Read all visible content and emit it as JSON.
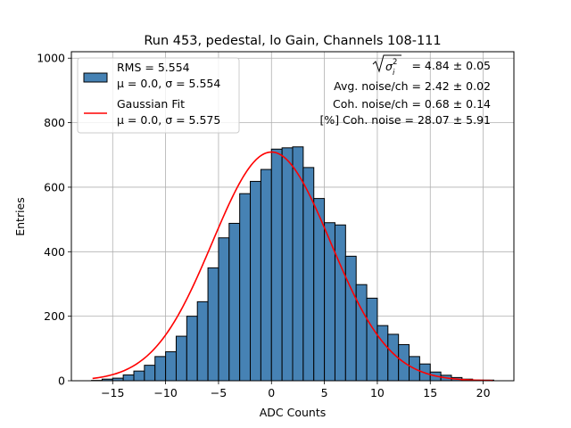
{
  "chart_data": {
    "type": "bar",
    "title": "Run 453, pedestal, lo Gain, Channels 108-111",
    "xlabel": "ADC Counts",
    "ylabel": "Entries",
    "xlim": [
      -18.9,
      22.9
    ],
    "ylim": [
      0,
      1020
    ],
    "x_ticks": [
      -15,
      -10,
      -5,
      0,
      5,
      10,
      15,
      20
    ],
    "x_tick_labels": [
      "−15",
      "−10",
      "−5",
      "0",
      "5",
      "10",
      "15",
      "20"
    ],
    "y_ticks": [
      0,
      200,
      400,
      600,
      800,
      1000
    ],
    "y_tick_labels": [
      "0",
      "200",
      "400",
      "600",
      "800",
      "1000"
    ],
    "grid": true,
    "legend_position": "top-left",
    "colors": {
      "bars": "#4682b4",
      "bar_edge": "#000000",
      "fit": "#ff0000"
    },
    "histogram": {
      "bin_width": 1,
      "bin_starts": [
        -17,
        -16,
        -15,
        -14,
        -13,
        -12,
        -11,
        -10,
        -9,
        -8,
        -7,
        -6,
        -5,
        -4,
        -3,
        -2,
        -1,
        0,
        1,
        2,
        3,
        4,
        5,
        6,
        7,
        8,
        9,
        10,
        11,
        12,
        13,
        14,
        15,
        16,
        17,
        18,
        19,
        20
      ],
      "values": [
        1,
        5,
        8,
        18,
        30,
        48,
        75,
        90,
        138,
        200,
        245,
        350,
        443,
        488,
        580,
        618,
        655,
        718,
        722,
        725,
        661,
        565,
        490,
        483,
        386,
        298,
        256,
        171,
        144,
        112,
        75,
        52,
        27,
        17,
        10,
        5,
        2,
        2
      ]
    },
    "fit": {
      "x_range": [
        -16.9,
        20.9
      ],
      "mu": 0.0,
      "sigma": 5.575,
      "amplitude": 709
    },
    "legend": [
      {
        "line1": "RMS = 5.554",
        "line2": "μ = 0.0, σ = 5.554"
      },
      {
        "line1": "Gaussian Fit",
        "line2": "μ = 0.0, σ = 5.575"
      }
    ],
    "annotations": {
      "sqrt_term": "= 4.84 ± 0.05",
      "avg_noise": "Avg. noise/ch = 2.42 ± 0.02",
      "coh_noise": "Coh. noise/ch = 0.68 ± 0.14",
      "coh_pct": "[%] Coh. noise = 28.07 ± 5.91"
    }
  }
}
